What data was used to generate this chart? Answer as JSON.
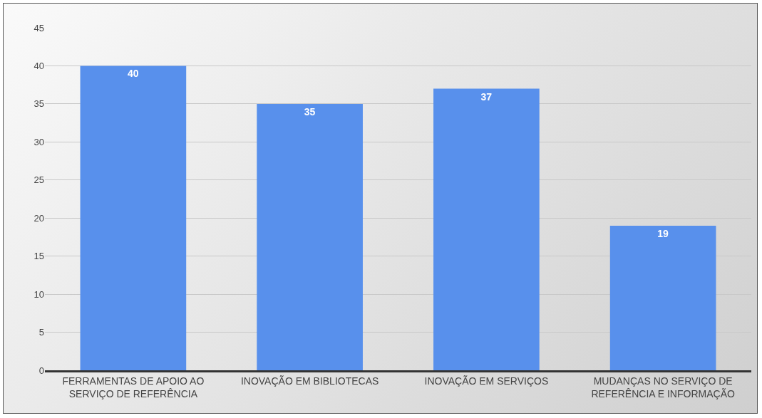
{
  "chart_data": {
    "type": "bar",
    "categories": [
      "FERRAMENTAS DE APOIO AO SERVIÇO DE REFERÊNCIA",
      "INOVAÇÃO EM BIBLIOTECAS",
      "INOVAÇÃO EM SERVIÇOS",
      "MUDANÇAS NO SERVIÇO DE REFERÊNCIA E INFORMAÇÃO"
    ],
    "values": [
      40,
      35,
      37,
      19
    ],
    "color": "#5890ec",
    "ylim": [
      0,
      45
    ],
    "yticks": [
      0,
      5,
      10,
      15,
      20,
      25,
      30,
      35,
      40,
      45
    ],
    "grid": "y",
    "data_labels": true
  }
}
